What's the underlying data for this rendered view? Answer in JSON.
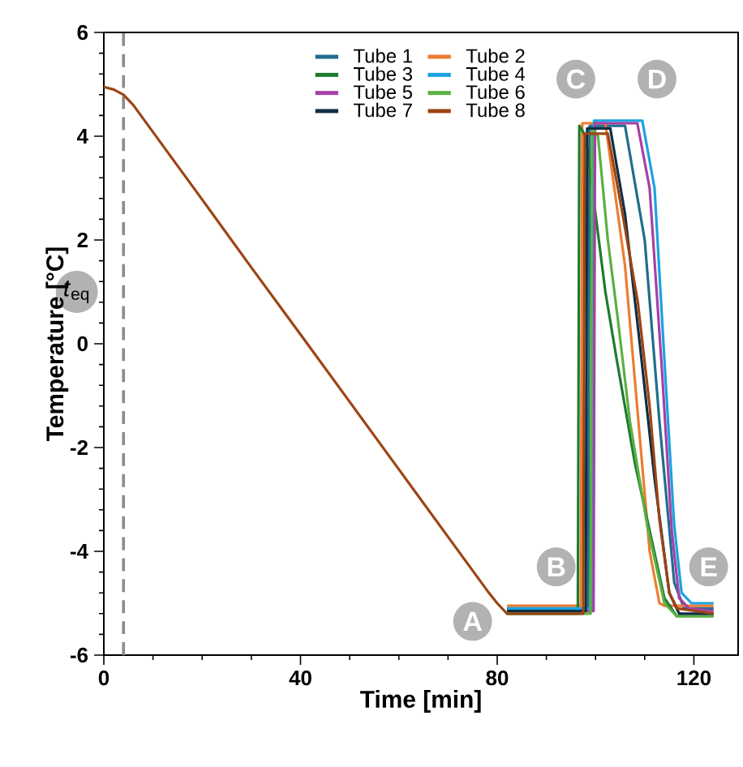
{
  "chart_data": {
    "type": "line",
    "xlabel": "Time [min]",
    "ylabel": "Temperature [°C]",
    "xlim": [
      0,
      129
    ],
    "ylim": [
      -6,
      6
    ],
    "xticks": [
      0,
      40,
      80,
      120
    ],
    "yticks": [
      -6,
      -4,
      -2,
      0,
      2,
      4,
      6
    ],
    "legend": "top",
    "marker": "none",
    "line_style": "solid",
    "grid": false,
    "series": [
      {
        "name": "Tube 1",
        "color": "#1f6e8c",
        "x": [
          82,
          90,
          98.5,
          98.8,
          106,
          110,
          113,
          116,
          118,
          124
        ],
        "values": [
          -5.1,
          -5.1,
          -5.1,
          4.2,
          4.2,
          2.0,
          -1.5,
          -4.6,
          -5.1,
          -5.1
        ]
      },
      {
        "name": "Tube 2",
        "color": "#ed7d31",
        "x": [
          82,
          90,
          97.0,
          97.3,
          102,
          106,
          109,
          111,
          113,
          114,
          124
        ],
        "values": [
          -5.05,
          -5.05,
          -5.05,
          4.25,
          4.25,
          1.5,
          -1.8,
          -4.0,
          -5.0,
          -5.05,
          -5.05
        ]
      },
      {
        "name": "Tube 3",
        "color": "#1e7b2e",
        "x": [
          82,
          90,
          96.4,
          96.7,
          98,
          100,
          102,
          104.3,
          108,
          111,
          114,
          116.5,
          124
        ],
        "values": [
          -5.2,
          -5.2,
          -5.2,
          4.2,
          4.0,
          2.5,
          1.0,
          -0.3,
          -2.3,
          -3.6,
          -4.9,
          -5.25,
          -5.25
        ]
      },
      {
        "name": "Tube 4",
        "color": "#1aa3e0",
        "x": [
          82,
          90,
          99.4,
          99.7,
          109.5,
          112,
          114,
          116,
          117.5,
          119.5,
          124
        ],
        "values": [
          -5.1,
          -5.1,
          -5.1,
          4.3,
          4.3,
          3.0,
          -0.3,
          -3.5,
          -4.8,
          -5.0,
          -5.0
        ]
      },
      {
        "name": "Tube 5",
        "color": "#a63fa6",
        "x": [
          82,
          90,
          99.6,
          99.9,
          108.5,
          111,
          113.5,
          115.5,
          117,
          119,
          124
        ],
        "values": [
          -5.15,
          -5.15,
          -5.15,
          4.25,
          4.25,
          3.0,
          -0.5,
          -3.6,
          -4.9,
          -5.1,
          -5.15
        ]
      },
      {
        "name": "Tube 6",
        "color": "#5bb043",
        "x": [
          82,
          90,
          99.0,
          99.3,
          100.5,
          102.5,
          104.5,
          107,
          110.5,
          114,
          116.5,
          124
        ],
        "values": [
          -5.2,
          -5.2,
          -5.2,
          4.15,
          4.0,
          2.0,
          0.5,
          -1.5,
          -3.5,
          -5.0,
          -5.25,
          -5.25
        ]
      },
      {
        "name": "Tube 7",
        "color": "#0e2e44",
        "x": [
          82,
          90,
          98.0,
          98.3,
          103,
          106,
          109,
          112,
          115,
          117,
          124
        ],
        "values": [
          -5.15,
          -5.15,
          -5.15,
          4.15,
          4.15,
          2.5,
          0.0,
          -2.6,
          -4.8,
          -5.2,
          -5.2
        ]
      },
      {
        "name": "Tube 8",
        "color": "#9c4414",
        "x": [
          0,
          2,
          4,
          6,
          20,
          30,
          40,
          50,
          60,
          70,
          78,
          80,
          82,
          90,
          97.5,
          97.8,
          102.5,
          105.5,
          108.6,
          111,
          113,
          115,
          116.6,
          124
        ],
        "values": [
          4.95,
          4.9,
          4.8,
          4.6,
          2.78,
          1.47,
          0.18,
          -1.12,
          -2.42,
          -3.72,
          -4.76,
          -5.0,
          -5.2,
          -5.2,
          -5.2,
          4.05,
          4.05,
          2.5,
          0.8,
          -1.2,
          -3.4,
          -4.8,
          -5.1,
          -5.2
        ]
      }
    ],
    "ref_lines": [
      {
        "axis": "x",
        "value": 4,
        "label": "*t*$_{eq}$",
        "color": "#8c8c8c",
        "line_style": "dashed"
      }
    ],
    "annotations": [
      {
        "text": "A",
        "x": 75,
        "y": -5.35
      },
      {
        "text": "B",
        "x": 92,
        "y": -4.3
      },
      {
        "text": "C",
        "x": 96,
        "y": 5.1
      },
      {
        "text": "D",
        "x": 112.5,
        "y": 5.1
      },
      {
        "text": "E",
        "x": 123,
        "y": -4.3
      }
    ]
  }
}
